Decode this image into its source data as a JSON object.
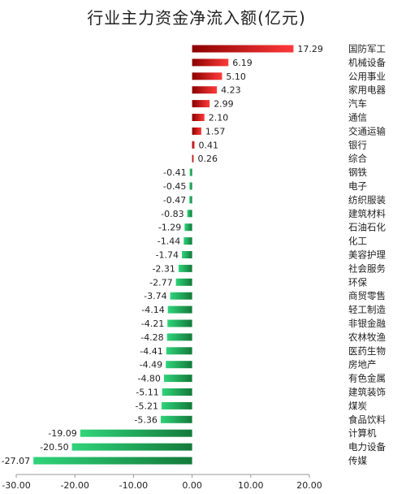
{
  "chart_data": {
    "type": "bar",
    "orientation": "horizontal",
    "title": "行业主力资金净流入额(亿元)",
    "categories": [
      "国防军工",
      "机械设备",
      "公用事业",
      "家用电器",
      "汽车",
      "通信",
      "交通运输",
      "银行",
      "综合",
      "钢铁",
      "电子",
      "纺织服装",
      "建筑材料",
      "石油石化",
      "化工",
      "美容护理",
      "社会服务",
      "环保",
      "商贸零售",
      "轻工制造",
      "非银金融",
      "农林牧渔",
      "医药生物",
      "房地产",
      "有色金属",
      "建筑装饰",
      "煤炭",
      "食品饮料",
      "计算机",
      "电力设备",
      "传媒"
    ],
    "values": [
      17.29,
      6.19,
      5.1,
      4.23,
      2.99,
      2.1,
      1.57,
      0.41,
      0.26,
      -0.41,
      -0.45,
      -0.47,
      -0.83,
      -1.29,
      -1.44,
      -1.74,
      -2.31,
      -2.77,
      -3.74,
      -4.14,
      -4.21,
      -4.28,
      -4.41,
      -4.49,
      -4.8,
      -5.11,
      -5.21,
      -5.36,
      -19.09,
      -20.5,
      -27.07
    ],
    "value_labels": [
      "17.29",
      "6.19",
      "5.10",
      "4.23",
      "2.99",
      "2.10",
      "1.57",
      "0.41",
      "0.26",
      "-0.41",
      "-0.45",
      "-0.47",
      "-0.83",
      "-1.29",
      "-1.44",
      "-1.74",
      "-2.31",
      "-2.77",
      "-3.74",
      "-4.14",
      "-4.21",
      "-4.28",
      "-4.41",
      "-4.49",
      "-4.80",
      "-5.11",
      "-5.21",
      "-5.36",
      "-19.09",
      "-20.50",
      "-27.07"
    ],
    "xlim": [
      -30,
      20
    ],
    "xticks": [
      -30,
      -20,
      -10,
      0,
      10,
      20
    ],
    "xtick_labels": [
      "-30.00",
      "-20.00",
      "-10.00",
      "0.00",
      "10.00",
      "20.00"
    ],
    "grid": false,
    "colors": {
      "positive_dark": "#8b0000",
      "positive_light": "#ff3a3a",
      "negative_dark": "#137a3a",
      "negative_light": "#2fd47a",
      "axis": "#9a9a9a",
      "text": "#222222"
    }
  }
}
